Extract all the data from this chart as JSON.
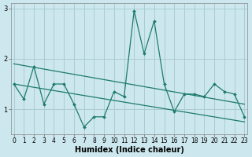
{
  "xlabel": "Humidex (Indice chaleur)",
  "bg_color": "#cce8ee",
  "line_color": "#1e7a6e",
  "grid_color": "#aaccd4",
  "x_data": [
    0,
    1,
    2,
    3,
    4,
    5,
    6,
    7,
    8,
    9,
    10,
    11,
    12,
    13,
    14,
    15,
    16,
    17,
    18,
    19,
    20,
    21,
    22,
    23
  ],
  "y_main": [
    1.5,
    1.2,
    1.85,
    1.1,
    1.5,
    1.5,
    1.1,
    0.65,
    0.85,
    0.85,
    1.35,
    1.25,
    2.95,
    2.1,
    2.75,
    1.5,
    0.95,
    1.3,
    1.3,
    1.25,
    1.5,
    1.35,
    1.3,
    0.85
  ],
  "y_upper_start": 1.9,
  "y_upper_end": 1.1,
  "y_lower_start": 1.5,
  "y_lower_end": 0.75,
  "xlim": [
    0,
    23
  ],
  "ylim": [
    0.5,
    3.1
  ],
  "yticks": [
    1,
    2,
    3
  ],
  "xticks": [
    0,
    1,
    2,
    3,
    4,
    5,
    6,
    7,
    8,
    9,
    10,
    11,
    12,
    13,
    14,
    15,
    16,
    17,
    18,
    19,
    20,
    21,
    22,
    23
  ],
  "tick_fontsize": 5.5,
  "xlabel_fontsize": 7
}
